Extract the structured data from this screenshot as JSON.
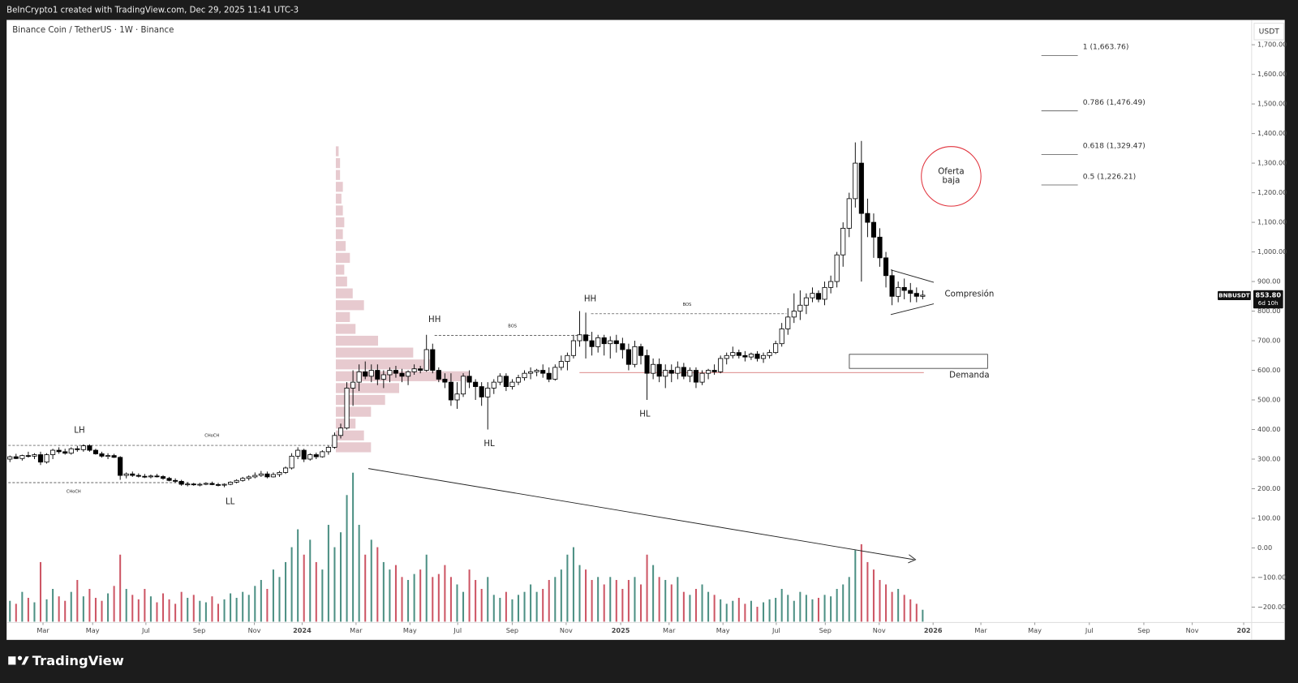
{
  "header": {
    "credit": "BeInCrypto1 created with TradingView.com, Dec 29, 2025 11:41 UTC-3",
    "symbol": "Binance Coin / TetherUS · 1W · Binance",
    "currency": "USDT",
    "brand": "TradingView"
  },
  "chart_data": {
    "type": "candlestick",
    "ohlc": [
      [
        300,
        312,
        290,
        308
      ],
      [
        308,
        318,
        300,
        302
      ],
      [
        302,
        315,
        295,
        312
      ],
      [
        312,
        325,
        305,
        310
      ],
      [
        310,
        320,
        300,
        315
      ],
      [
        315,
        325,
        280,
        290
      ],
      [
        290,
        320,
        285,
        315
      ],
      [
        315,
        335,
        300,
        330
      ],
      [
        330,
        340,
        318,
        325
      ],
      [
        325,
        335,
        315,
        320
      ],
      [
        320,
        340,
        315,
        335
      ],
      [
        335,
        345,
        325,
        332
      ],
      [
        332,
        350,
        325,
        345
      ],
      [
        345,
        350,
        325,
        330
      ],
      [
        330,
        335,
        315,
        318
      ],
      [
        318,
        325,
        305,
        310
      ],
      [
        310,
        320,
        300,
        312
      ],
      [
        312,
        318,
        304,
        306
      ],
      [
        306,
        310,
        230,
        245
      ],
      [
        245,
        255,
        235,
        250
      ],
      [
        250,
        258,
        240,
        245
      ],
      [
        245,
        252,
        238,
        242
      ],
      [
        242,
        250,
        236,
        240
      ],
      [
        240,
        248,
        235,
        243
      ],
      [
        243,
        250,
        238,
        241
      ],
      [
        241,
        246,
        230,
        235
      ],
      [
        235,
        240,
        225,
        228
      ],
      [
        228,
        235,
        220,
        225
      ],
      [
        225,
        230,
        210,
        215
      ],
      [
        215,
        222,
        208,
        216
      ],
      [
        216,
        220,
        210,
        214
      ],
      [
        214,
        220,
        208,
        215
      ],
      [
        215,
        222,
        212,
        218
      ],
      [
        218,
        224,
        212,
        214
      ],
      [
        214,
        220,
        208,
        212
      ],
      [
        212,
        218,
        205,
        215
      ],
      [
        215,
        225,
        212,
        222
      ],
      [
        222,
        232,
        218,
        228
      ],
      [
        228,
        240,
        224,
        235
      ],
      [
        235,
        245,
        228,
        240
      ],
      [
        240,
        255,
        235,
        245
      ],
      [
        245,
        260,
        240,
        250
      ],
      [
        250,
        258,
        235,
        240
      ],
      [
        240,
        255,
        238,
        248
      ],
      [
        248,
        260,
        240,
        255
      ],
      [
        255,
        275,
        250,
        270
      ],
      [
        270,
        320,
        265,
        310
      ],
      [
        310,
        340,
        300,
        330
      ],
      [
        330,
        335,
        290,
        300
      ],
      [
        300,
        320,
        295,
        315
      ],
      [
        315,
        322,
        300,
        308
      ],
      [
        308,
        330,
        305,
        325
      ],
      [
        325,
        345,
        315,
        340
      ],
      [
        340,
        390,
        335,
        380
      ],
      [
        380,
        420,
        370,
        405
      ],
      [
        405,
        560,
        400,
        540
      ],
      [
        540,
        600,
        480,
        560
      ],
      [
        560,
        620,
        530,
        595
      ],
      [
        595,
        630,
        570,
        580
      ],
      [
        580,
        620,
        560,
        600
      ],
      [
        600,
        620,
        550,
        570
      ],
      [
        570,
        600,
        540,
        585
      ],
      [
        585,
        610,
        560,
        600
      ],
      [
        600,
        615,
        575,
        590
      ],
      [
        590,
        605,
        560,
        580
      ],
      [
        580,
        600,
        550,
        595
      ],
      [
        595,
        620,
        585,
        605
      ],
      [
        605,
        615,
        590,
        600
      ],
      [
        600,
        720,
        595,
        670
      ],
      [
        670,
        690,
        590,
        600
      ],
      [
        600,
        610,
        560,
        570
      ],
      [
        570,
        590,
        540,
        560
      ],
      [
        560,
        590,
        480,
        500
      ],
      [
        500,
        560,
        470,
        520
      ],
      [
        520,
        590,
        510,
        580
      ],
      [
        580,
        600,
        540,
        560
      ],
      [
        560,
        570,
        500,
        545
      ],
      [
        545,
        560,
        480,
        510
      ],
      [
        510,
        560,
        400,
        540
      ],
      [
        540,
        570,
        520,
        560
      ],
      [
        560,
        590,
        550,
        580
      ],
      [
        580,
        590,
        530,
        545
      ],
      [
        545,
        570,
        535,
        560
      ],
      [
        560,
        585,
        550,
        575
      ],
      [
        575,
        600,
        565,
        590
      ],
      [
        590,
        610,
        570,
        595
      ],
      [
        595,
        605,
        580,
        600
      ],
      [
        600,
        620,
        575,
        590
      ],
      [
        590,
        610,
        560,
        570
      ],
      [
        570,
        620,
        565,
        610
      ],
      [
        610,
        650,
        600,
        630
      ],
      [
        630,
        660,
        600,
        650
      ],
      [
        650,
        720,
        640,
        700
      ],
      [
        700,
        800,
        680,
        720
      ],
      [
        720,
        795,
        640,
        700
      ],
      [
        700,
        730,
        650,
        680
      ],
      [
        680,
        720,
        660,
        710
      ],
      [
        710,
        720,
        650,
        690
      ],
      [
        690,
        715,
        640,
        700
      ],
      [
        700,
        720,
        660,
        690
      ],
      [
        690,
        710,
        640,
        670
      ],
      [
        670,
        690,
        600,
        620
      ],
      [
        620,
        700,
        610,
        680
      ],
      [
        680,
        690,
        620,
        650
      ],
      [
        650,
        670,
        500,
        590
      ],
      [
        590,
        640,
        570,
        620
      ],
      [
        620,
        640,
        560,
        580
      ],
      [
        580,
        620,
        540,
        600
      ],
      [
        600,
        620,
        560,
        590
      ],
      [
        590,
        630,
        570,
        610
      ],
      [
        610,
        625,
        570,
        580
      ],
      [
        580,
        610,
        560,
        600
      ],
      [
        600,
        610,
        540,
        560
      ],
      [
        560,
        600,
        550,
        590
      ],
      [
        590,
        605,
        570,
        600
      ],
      [
        600,
        620,
        585,
        595
      ],
      [
        595,
        650,
        590,
        640
      ],
      [
        640,
        660,
        620,
        650
      ],
      [
        650,
        680,
        640,
        660
      ],
      [
        660,
        670,
        640,
        650
      ],
      [
        650,
        665,
        630,
        645
      ],
      [
        645,
        660,
        635,
        655
      ],
      [
        655,
        665,
        630,
        640
      ],
      [
        640,
        660,
        625,
        650
      ],
      [
        650,
        670,
        640,
        660
      ],
      [
        660,
        700,
        655,
        690
      ],
      [
        690,
        760,
        680,
        740
      ],
      [
        740,
        810,
        720,
        780
      ],
      [
        780,
        860,
        760,
        800
      ],
      [
        800,
        870,
        770,
        820
      ],
      [
        820,
        860,
        790,
        845
      ],
      [
        845,
        880,
        830,
        860
      ],
      [
        860,
        870,
        830,
        840
      ],
      [
        840,
        900,
        820,
        880
      ],
      [
        880,
        920,
        860,
        900
      ],
      [
        900,
        1000,
        880,
        990
      ],
      [
        990,
        1100,
        950,
        1080
      ],
      [
        1080,
        1200,
        1050,
        1180
      ],
      [
        1180,
        1370,
        1150,
        1300
      ],
      [
        1300,
        1375,
        900,
        1130
      ],
      [
        1130,
        1180,
        1050,
        1100
      ],
      [
        1100,
        1130,
        980,
        1050
      ],
      [
        1050,
        1080,
        950,
        980
      ],
      [
        980,
        1000,
        880,
        920
      ],
      [
        920,
        940,
        820,
        850
      ],
      [
        850,
        900,
        830,
        880
      ],
      [
        880,
        910,
        840,
        870
      ],
      [
        870,
        895,
        830,
        860
      ],
      [
        860,
        880,
        830,
        850
      ],
      [
        850,
        870,
        840,
        853.8
      ]
    ],
    "volume": [
      14,
      12,
      20,
      16,
      13,
      40,
      15,
      22,
      17,
      14,
      20,
      28,
      17,
      22,
      16,
      14,
      19,
      24,
      45,
      22,
      18,
      15,
      22,
      17,
      13,
      19,
      15,
      12,
      20,
      16,
      18,
      14,
      13,
      17,
      12,
      15,
      19,
      16,
      20,
      18,
      24,
      28,
      22,
      35,
      30,
      40,
      50,
      62,
      45,
      55,
      40,
      35,
      65,
      50,
      60,
      85,
      100,
      65,
      45,
      55,
      50,
      40,
      35,
      38,
      30,
      28,
      32,
      35,
      45,
      30,
      32,
      38,
      30,
      25,
      20,
      35,
      28,
      22,
      30,
      18,
      16,
      20,
      15,
      18,
      20,
      25,
      20,
      22,
      28,
      30,
      35,
      45,
      50,
      38,
      35,
      28,
      30,
      25,
      30,
      28,
      22,
      28,
      30,
      25,
      45,
      38,
      30,
      28,
      25,
      30,
      20,
      18,
      22,
      25,
      20,
      18,
      15,
      12,
      14,
      16,
      12,
      14,
      10,
      13,
      15,
      16,
      22,
      18,
      14,
      20,
      18,
      15,
      16,
      18,
      17,
      22,
      25,
      30,
      48,
      52,
      40,
      35,
      28,
      25,
      20,
      22,
      18,
      15,
      12,
      8
    ],
    "ylim": [
      -252,
      1767
    ],
    "yticks": [
      {
        "value": -200,
        "label": "−200.00"
      },
      {
        "value": -100,
        "label": "−100.00"
      },
      {
        "value": 0,
        "label": "0.00"
      },
      {
        "value": 100,
        "label": "100.00"
      },
      {
        "value": 200,
        "label": "200.00"
      },
      {
        "value": 300,
        "label": "300.00"
      },
      {
        "value": 400,
        "label": "400.00"
      },
      {
        "value": 500,
        "label": "500.00"
      },
      {
        "value": 600,
        "label": "600.00"
      },
      {
        "value": 700,
        "label": "700.00"
      },
      {
        "value": 800,
        "label": "800.00"
      },
      {
        "value": 900,
        "label": "900.00"
      },
      {
        "value": 1000,
        "label": "1,000.00"
      },
      {
        "value": 1100,
        "label": "1,100.00"
      },
      {
        "value": 1200,
        "label": "1,200.00"
      },
      {
        "value": 1300,
        "label": "1,300.00"
      },
      {
        "value": 1400,
        "label": "1,400.00"
      },
      {
        "value": 1500,
        "label": "1,500.00"
      },
      {
        "value": 1600,
        "label": "1,600.00"
      },
      {
        "value": 1700,
        "label": "1,700.00"
      }
    ],
    "xlim": [
      -0.27,
      202.7
    ],
    "xticks": [
      {
        "value": 5.4,
        "label": "Mar"
      },
      {
        "value": 13.5,
        "label": "May"
      },
      {
        "value": 22.2,
        "label": "Jul"
      },
      {
        "value": 30.9,
        "label": "Sep"
      },
      {
        "value": 39.9,
        "label": "Nov"
      },
      {
        "value": 47.7,
        "label": "2024"
      },
      {
        "value": 56.5,
        "label": "Mar"
      },
      {
        "value": 65.3,
        "label": "May"
      },
      {
        "value": 73.1,
        "label": "Jul"
      },
      {
        "value": 82.0,
        "label": "Sep"
      },
      {
        "value": 90.8,
        "label": "Nov"
      },
      {
        "value": 99.7,
        "label": "2025"
      },
      {
        "value": 107.6,
        "label": "Mar"
      },
      {
        "value": 116.4,
        "label": "May"
      },
      {
        "value": 125.1,
        "label": "Jul"
      },
      {
        "value": 133.1,
        "label": "Sep"
      },
      {
        "value": 141.9,
        "label": "Nov"
      },
      {
        "value": 150.7,
        "label": "2026"
      },
      {
        "value": 158.5,
        "label": "Mar"
      },
      {
        "value": 167.3,
        "label": "May"
      },
      {
        "value": 176.2,
        "label": "Jul"
      },
      {
        "value": 185.1,
        "label": "Sep"
      },
      {
        "value": 193.0,
        "label": "Nov"
      },
      {
        "value": 201.4,
        "label": "202"
      }
    ],
    "colors": {
      "up": "#ffffff",
      "down": "#000000",
      "outline": "#000000",
      "volume_up": "#2e7d6f",
      "volume_down": "#c4384a",
      "profile": "#c98a95"
    },
    "volume_profile": {
      "prices": [
        340,
        380,
        420,
        460,
        500,
        540,
        580,
        620,
        660,
        700,
        740,
        780,
        820,
        860,
        900,
        940,
        980,
        1020,
        1060,
        1100,
        1140,
        1180,
        1220,
        1260,
        1300,
        1340
      ],
      "values": [
        25,
        20,
        14,
        25,
        35,
        45,
        95,
        70,
        55,
        30,
        14,
        10,
        20,
        12,
        8,
        6,
        10,
        7,
        5,
        6,
        5,
        4,
        5,
        3,
        3,
        2
      ]
    },
    "fib_levels": [
      {
        "value": 1663.76,
        "label": "1 (1,663.76)"
      },
      {
        "value": 1476.49,
        "label": "0.786 (1,476.49)"
      },
      {
        "value": 1329.47,
        "label": "0.618 (1,329.47)"
      },
      {
        "value": 1226.21,
        "label": "0.5 (1,226.21)"
      }
    ],
    "annotations": [
      "HH",
      "HH",
      "HL",
      "HL",
      "LH",
      "LL",
      "BOS",
      "BOS",
      "CHoCH",
      "CHoCH",
      "Oferta",
      "baja",
      "Compresión",
      "Demanda"
    ],
    "price_tag": {
      "symbol": "BNBUSDT",
      "label": "853.80",
      "countdown": "6d 10h"
    }
  }
}
